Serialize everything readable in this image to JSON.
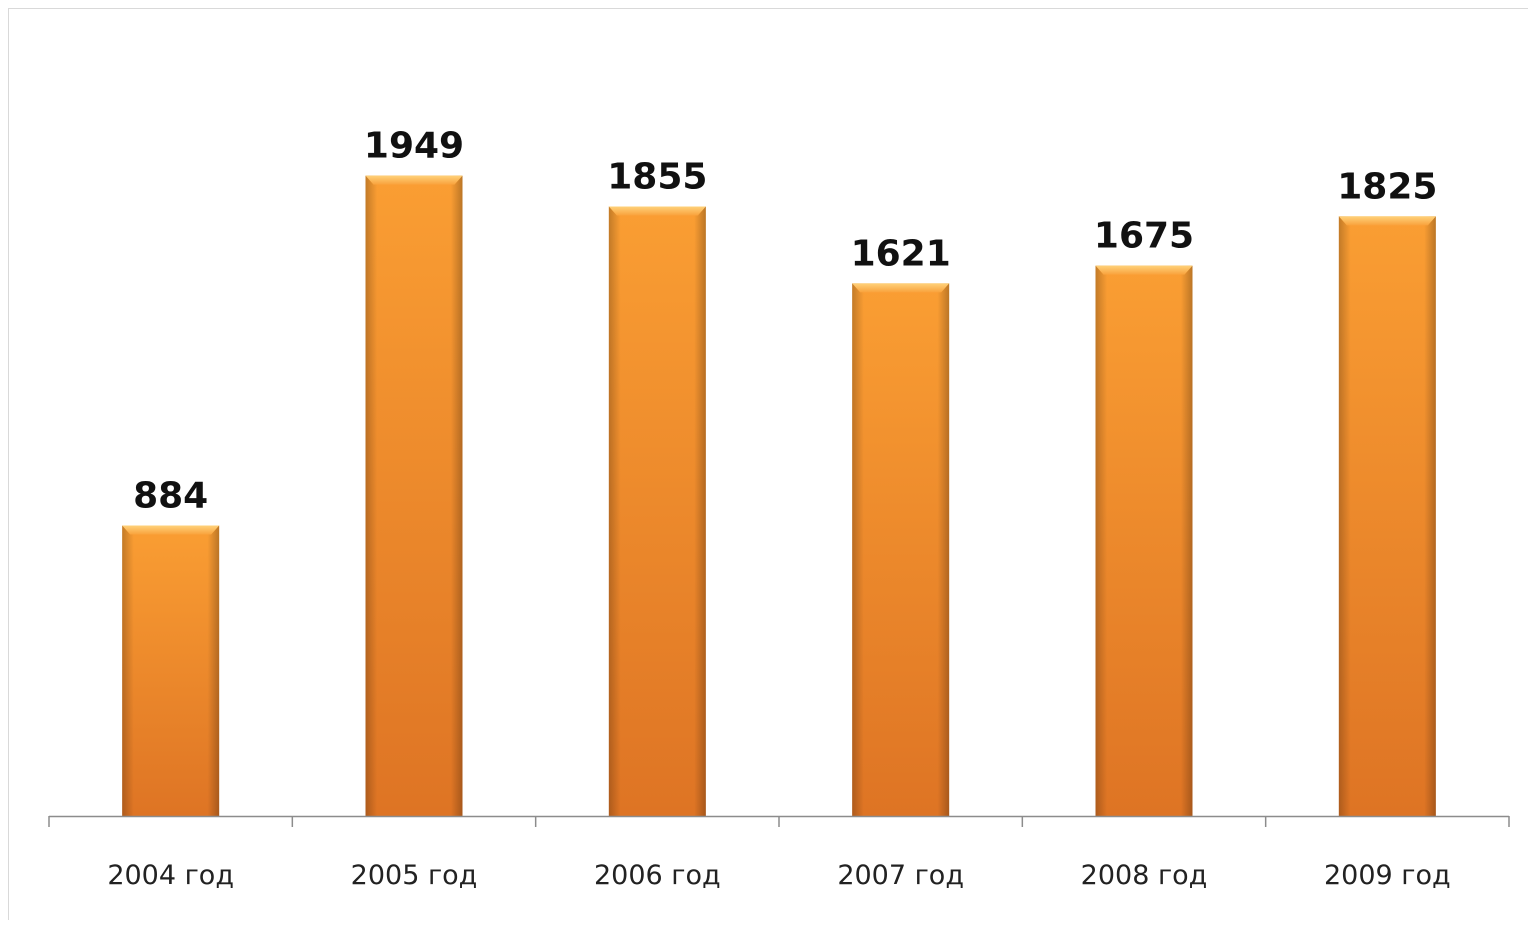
{
  "chart_data": {
    "type": "bar",
    "categories": [
      "2004 год",
      "2005 год",
      "2006 год",
      "2007 год",
      "2008 год",
      "2009 год"
    ],
    "values": [
      884,
      1949,
      1855,
      1621,
      1675,
      1825
    ],
    "data_labels": [
      "884",
      "1949",
      "1855",
      "1621",
      "1675",
      "1825"
    ],
    "title": "",
    "xlabel": "",
    "ylabel": "",
    "ylim": [
      0,
      2100
    ],
    "grid": false,
    "legend": "none",
    "bar_color": "#F7962B",
    "bar_color_dark": "#D9701E"
  }
}
